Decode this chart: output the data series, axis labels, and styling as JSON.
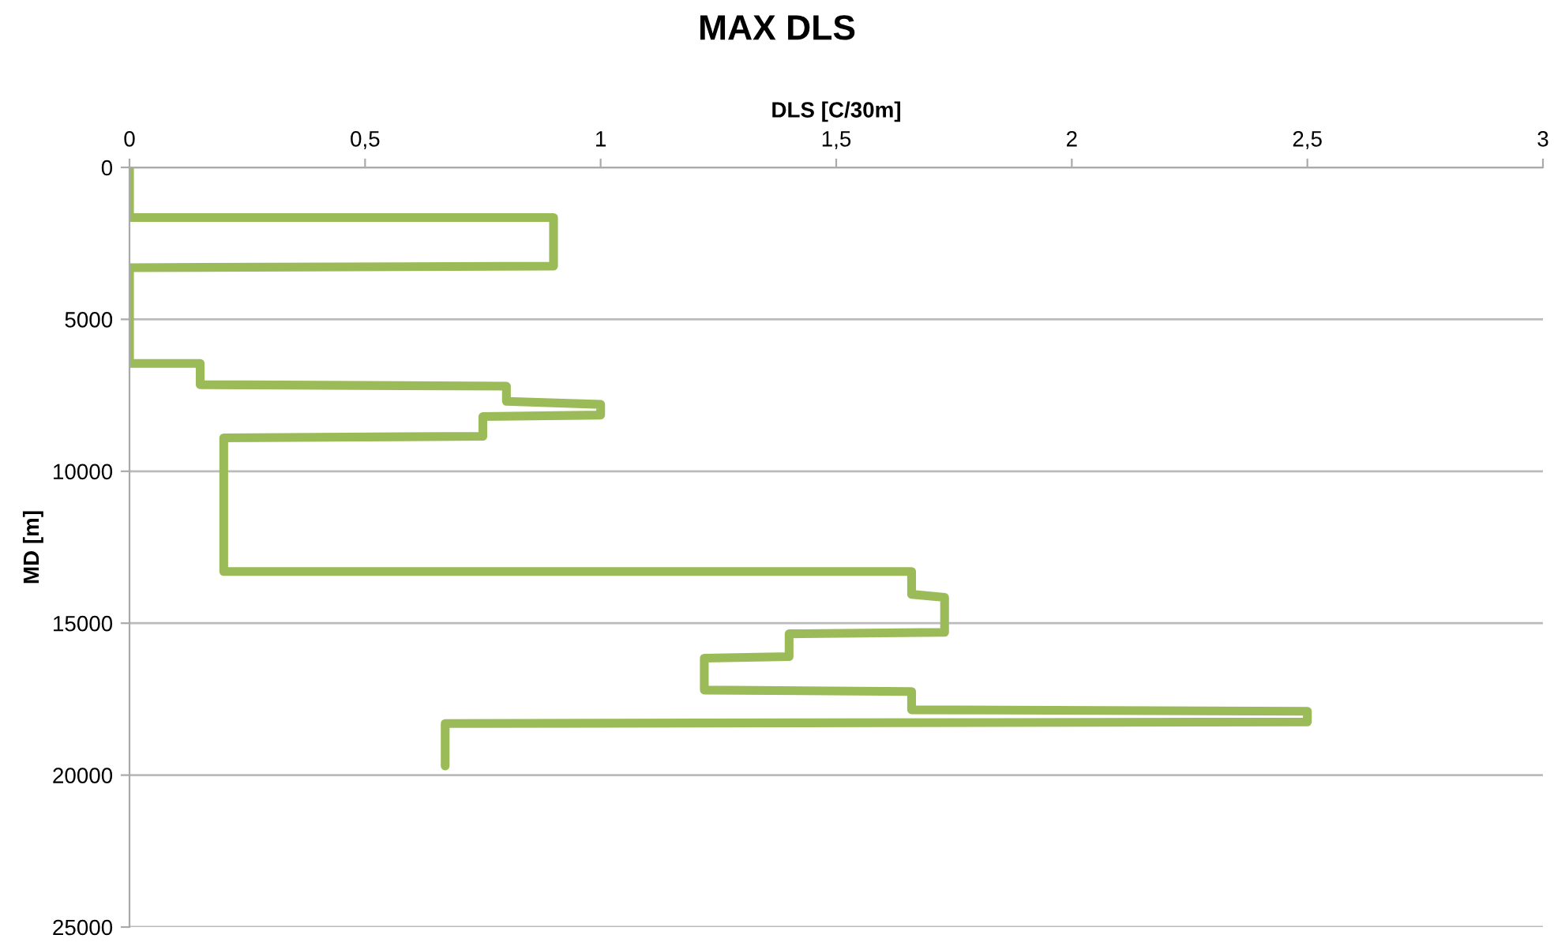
{
  "chart_data": {
    "type": "line",
    "title": "MAX DLS",
    "xlabel": "DLS [C/30m]",
    "ylabel": "MD [m]",
    "x": [
      0,
      0,
      0.9,
      0.9,
      0,
      0,
      0.15,
      0.15,
      0.8,
      0.8,
      1.0,
      1.0,
      0.75,
      0.75,
      0.2,
      0.2,
      1.66,
      1.66,
      1.73,
      1.73,
      1.4,
      1.4,
      1.22,
      1.22,
      1.66,
      1.66,
      2.5,
      2.5,
      0.67,
      0.67
    ],
    "series": [
      {
        "color": "#9bbb59",
        "values": [
          0,
          1650,
          1650,
          3250,
          3300,
          6450,
          6450,
          7150,
          7200,
          7700,
          7800,
          8150,
          8200,
          8850,
          8900,
          13300,
          13300,
          14050,
          14150,
          15300,
          15350,
          16100,
          16150,
          17200,
          17250,
          17850,
          17900,
          18250,
          18300,
          19700
        ]
      }
    ],
    "xlim": [
      0,
      3
    ],
    "xticks": [
      0,
      {
        "value": 0.5,
        "label": "0,5"
      },
      1,
      {
        "value": 1.5,
        "label": "1,5"
      },
      2,
      {
        "value": 2.5,
        "label": "2,5"
      },
      3
    ],
    "ylim": [
      25000,
      0
    ],
    "yticks": [
      0,
      5000,
      10000,
      15000,
      20000,
      25000
    ],
    "grid": "y",
    "line_style": "solid",
    "marker": "none"
  }
}
